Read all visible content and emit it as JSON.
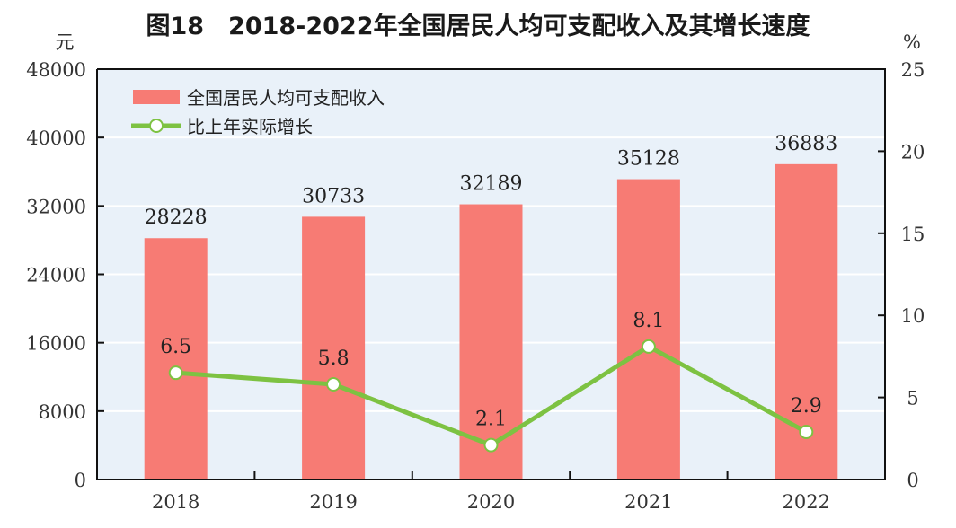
{
  "chart_data": {
    "type": "bar+line",
    "title": "图18　2018-2022年全国居民人均可支配收入及其增长速度",
    "categories": [
      "2018",
      "2019",
      "2020",
      "2021",
      "2022"
    ],
    "series": [
      {
        "name": "全国居民人均可支配收入",
        "type": "bar",
        "axis": "left",
        "color": "#f77b74",
        "values": [
          28228,
          30733,
          32189,
          35128,
          36883
        ]
      },
      {
        "name": "比上年实际增长",
        "type": "line",
        "axis": "right",
        "color": "#7dc242",
        "values": [
          6.5,
          5.8,
          2.1,
          8.1,
          2.9
        ]
      }
    ],
    "ylabel_left": "元",
    "ylabel_right": "%",
    "ylim_left": [
      0,
      48000
    ],
    "yticks_left": [
      "0",
      "8000",
      "16000",
      "24000",
      "32000",
      "40000",
      "48000"
    ],
    "ylim_right": [
      0,
      25
    ],
    "yticks_right": [
      "0",
      "5",
      "10",
      "15",
      "20",
      "25"
    ],
    "bar_labels": [
      "28228",
      "30733",
      "32189",
      "35128",
      "36883"
    ],
    "line_labels": [
      "6.5",
      "5.8",
      "2.1",
      "8.1",
      "2.9"
    ],
    "grid": true,
    "legend": "top-left",
    "background_color": "#e9f1f9"
  }
}
